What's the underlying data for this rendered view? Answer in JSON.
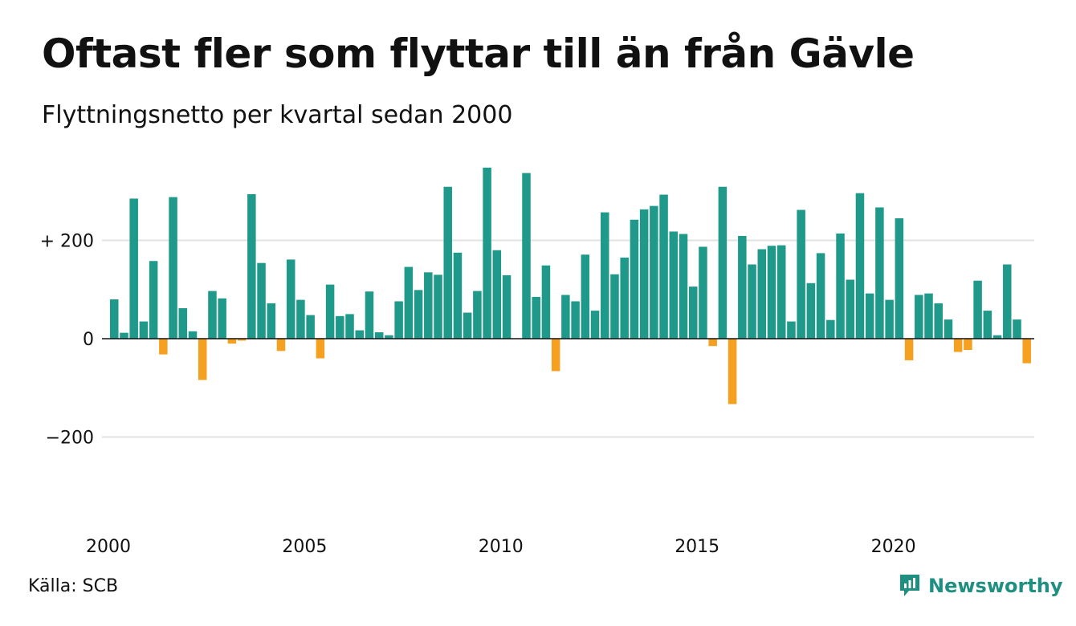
{
  "title": "Oftast fler som flyttar till än från Gävle",
  "subtitle": "Flyttningsnetto per kvartal sedan 2000",
  "source": "Källa: SCB",
  "brand": {
    "name": "Newsworthy",
    "icon": "newsworthy-logo-icon",
    "color": "#1f8f82"
  },
  "colors": {
    "positive": "#1f9a8a",
    "negative": "#f5a01f",
    "grid": "#e2e2e2",
    "axis": "#111111"
  },
  "chart_data": {
    "type": "bar",
    "title": "Oftast fler som flyttar till än från Gävle",
    "subtitle": "Flyttningsnetto per kvartal sedan 2000",
    "xlabel": "",
    "ylabel": "",
    "ylim": [
      -360,
      350
    ],
    "y_ticks": [
      {
        "value": 200,
        "label": "+ 200"
      },
      {
        "value": 0,
        "label": "0"
      },
      {
        "value": -200,
        "label": "−200"
      }
    ],
    "x_ticks": [
      {
        "value": 2000,
        "label": "2000"
      },
      {
        "value": 2005,
        "label": "2005"
      },
      {
        "value": 2010,
        "label": "2010"
      },
      {
        "value": 2015,
        "label": "2015"
      },
      {
        "value": 2020,
        "label": "2020"
      }
    ],
    "grid": true,
    "start_year": 2000,
    "values": [
      80,
      12,
      285,
      35,
      158,
      -32,
      288,
      62,
      15,
      -84,
      97,
      82,
      -10,
      -4,
      294,
      154,
      72,
      -25,
      161,
      79,
      48,
      -40,
      110,
      46,
      50,
      17,
      96,
      13,
      7,
      76,
      146,
      99,
      135,
      130,
      309,
      175,
      53,
      97,
      348,
      180,
      129,
      0,
      337,
      85,
      149,
      -66,
      89,
      76,
      171,
      57,
      257,
      131,
      165,
      242,
      263,
      270,
      293,
      218,
      213,
      106,
      187,
      -15,
      309,
      -133,
      209,
      151,
      182,
      189,
      190,
      35,
      262,
      113,
      174,
      38,
      214,
      120,
      296,
      92,
      267,
      79,
      245,
      -44,
      89,
      92,
      72,
      39,
      -27,
      -23,
      118,
      57,
      7,
      151,
      39,
      -50
    ]
  }
}
